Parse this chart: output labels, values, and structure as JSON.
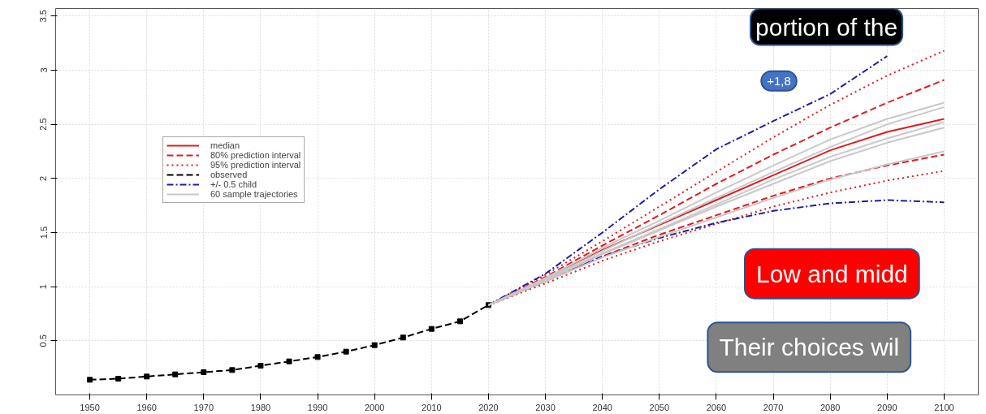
{
  "chart_data": {
    "type": "line",
    "x": [
      2020,
      2030,
      2040,
      2050,
      2060,
      2070,
      2080,
      2090,
      2100
    ],
    "xlim": [
      1944,
      2106
    ],
    "ylim": [
      0,
      3.57
    ],
    "xticks": [
      1950,
      1960,
      1970,
      1980,
      1990,
      2000,
      2010,
      2020,
      2030,
      2040,
      2050,
      2060,
      2070,
      2080,
      2090,
      2100
    ],
    "yticks": [
      0.5,
      1,
      1.5,
      2,
      2.5,
      3,
      3.5
    ],
    "grid": true,
    "legend": "top left",
    "series": [
      {
        "name": "median",
        "color": "#e31a1c",
        "line_style": "solid",
        "values": [
          0.83,
          1.07,
          1.34,
          1.57,
          1.8,
          2.03,
          2.26,
          2.43,
          2.55
        ]
      },
      {
        "name": "80% prediction interval",
        "color": "#e31a1c",
        "line_style": "dashed",
        "values": [
          0.83,
          1.09,
          1.38,
          1.66,
          1.95,
          2.22,
          2.47,
          2.7,
          2.91
        ]
      },
      {
        "color": "#e31a1c",
        "line_style": "dashed",
        "values": [
          0.83,
          1.05,
          1.28,
          1.48,
          1.66,
          1.84,
          2.0,
          2.12,
          2.22
        ]
      },
      {
        "name": "95% prediction interval",
        "color": "#e31a1c",
        "line_style": "dotted",
        "values": [
          0.83,
          1.11,
          1.42,
          1.74,
          2.06,
          2.38,
          2.68,
          2.95,
          3.18
        ]
      },
      {
        "color": "#e31a1c",
        "line_style": "dotted",
        "values": [
          0.83,
          1.03,
          1.24,
          1.42,
          1.58,
          1.74,
          1.87,
          1.98,
          2.07
        ]
      },
      {
        "name": "observed",
        "color": "#000000",
        "line_style": "dashed",
        "marker": "square",
        "x": [
          1950,
          1955,
          1960,
          1965,
          1970,
          1975,
          1980,
          1985,
          1990,
          1995,
          2000,
          2005,
          2010,
          2015,
          2020
        ],
        "values": [
          0.14,
          0.15,
          0.17,
          0.19,
          0.21,
          0.23,
          0.27,
          0.31,
          0.35,
          0.4,
          0.46,
          0.53,
          0.61,
          0.68,
          0.83
        ]
      },
      {
        "name": "+/- 0.5 child",
        "color": "#1f1fa0",
        "line_style": "dashdot",
        "values": [
          0.83,
          1.12,
          1.5,
          1.9,
          2.27,
          2.53,
          2.78,
          3.13,
          null
        ]
      },
      {
        "color": "#1f1fa0",
        "line_style": "dashdot",
        "values": [
          0.83,
          1.05,
          1.28,
          1.45,
          1.59,
          1.7,
          1.77,
          1.8,
          1.78
        ]
      },
      {
        "name": "60 sample trajectories",
        "color": "#c8c8c8",
        "line_style": "solid",
        "values": [
          0.83,
          1.06,
          1.3,
          1.52,
          1.74,
          1.95,
          2.16,
          2.33,
          2.47
        ]
      },
      {
        "color": "#c8c8c8",
        "line_style": "solid",
        "values": [
          0.83,
          1.08,
          1.36,
          1.61,
          1.87,
          2.12,
          2.36,
          2.55,
          2.7
        ]
      },
      {
        "color": "#c8c8c8",
        "line_style": "solid",
        "values": [
          0.83,
          1.05,
          1.27,
          1.46,
          1.64,
          1.82,
          1.99,
          2.13,
          2.25
        ]
      },
      {
        "color": "#c8c8c8",
        "line_style": "solid",
        "values": [
          0.83,
          1.07,
          1.33,
          1.58,
          1.82,
          2.06,
          2.29,
          2.5,
          2.66
        ]
      },
      {
        "color": "#c8c8c8",
        "line_style": "solid",
        "values": [
          0.83,
          1.06,
          1.31,
          1.53,
          1.76,
          1.99,
          2.2,
          2.37,
          2.52
        ]
      }
    ],
    "annotations": [
      "portion of the",
      "+1,8",
      "Low and midd",
      "Their choices wil"
    ]
  }
}
